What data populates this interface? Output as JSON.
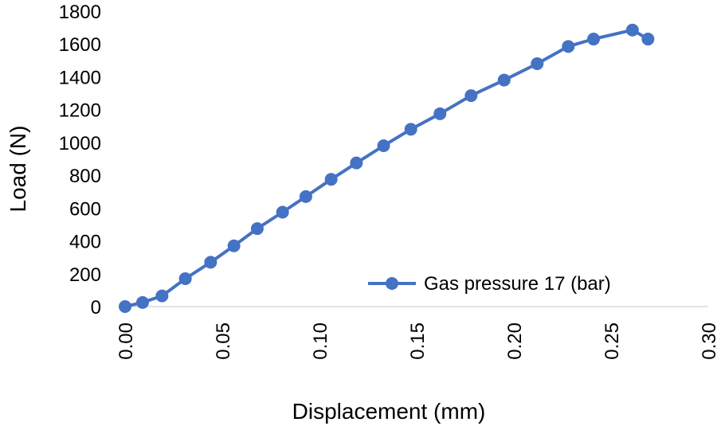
{
  "chart_data": {
    "type": "line",
    "title": "",
    "xlabel": "Displacement (mm)",
    "ylabel": "Load (N)",
    "xlim": [
      0,
      0.3
    ],
    "ylim": [
      0,
      1800
    ],
    "x_ticks": [
      "0.00",
      "0.05",
      "0.10",
      "0.15",
      "0.20",
      "0.25",
      "0.30"
    ],
    "y_ticks": [
      "0",
      "200",
      "400",
      "600",
      "800",
      "1000",
      "1200",
      "1400",
      "1600",
      "1800"
    ],
    "grid": false,
    "legend_position": "bottom-right",
    "series": [
      {
        "name": "Gas pressure 17 (bar)",
        "color": "#4472C4",
        "marker": "circle",
        "points": [
          [
            0.0,
            0
          ],
          [
            0.009,
            25
          ],
          [
            0.019,
            65
          ],
          [
            0.031,
            170
          ],
          [
            0.044,
            270
          ],
          [
            0.056,
            370
          ],
          [
            0.068,
            475
          ],
          [
            0.081,
            575
          ],
          [
            0.093,
            670
          ],
          [
            0.106,
            775
          ],
          [
            0.119,
            875
          ],
          [
            0.133,
            980
          ],
          [
            0.147,
            1080
          ],
          [
            0.162,
            1175
          ],
          [
            0.178,
            1285
          ],
          [
            0.195,
            1380
          ],
          [
            0.212,
            1480
          ],
          [
            0.228,
            1585
          ],
          [
            0.241,
            1630
          ],
          [
            0.261,
            1685
          ],
          [
            0.269,
            1630
          ]
        ]
      }
    ]
  }
}
